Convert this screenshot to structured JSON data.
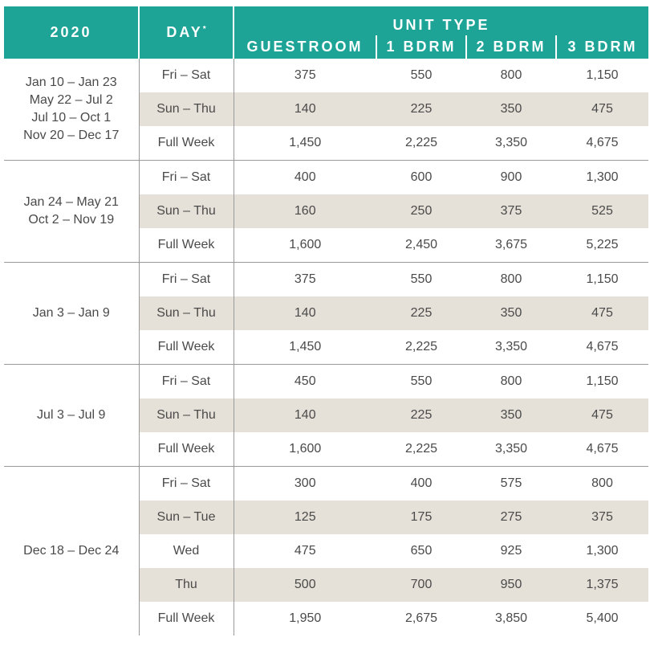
{
  "header": {
    "year": "2020",
    "day": "DAY",
    "day_mark": "*",
    "unit_type": "UNIT TYPE",
    "columns": [
      "GUESTROOM",
      "1 BDRM",
      "2 BDRM",
      "3 BDRM"
    ]
  },
  "colors": {
    "header_bg": "#1ea497",
    "shade": "#e6e1d8"
  },
  "seasons": [
    {
      "dates": [
        "Jan 10 – Jan 23",
        "May 22 – Jul 2",
        "Jul 10 – Oct 1",
        "Nov 20 – Dec 17"
      ],
      "rows": [
        {
          "day": "Fri – Sat",
          "values": [
            "375",
            "550",
            "800",
            "1,150"
          ]
        },
        {
          "day": "Sun – Thu",
          "values": [
            "140",
            "225",
            "350",
            "475"
          ]
        },
        {
          "day": "Full Week",
          "values": [
            "1,450",
            "2,225",
            "3,350",
            "4,675"
          ]
        }
      ]
    },
    {
      "dates": [
        "Jan 24 – May 21",
        "Oct 2 – Nov 19"
      ],
      "rows": [
        {
          "day": "Fri – Sat",
          "values": [
            "400",
            "600",
            "900",
            "1,300"
          ]
        },
        {
          "day": "Sun – Thu",
          "values": [
            "160",
            "250",
            "375",
            "525"
          ]
        },
        {
          "day": "Full Week",
          "values": [
            "1,600",
            "2,450",
            "3,675",
            "5,225"
          ]
        }
      ]
    },
    {
      "dates": [
        "Jan 3 – Jan 9"
      ],
      "rows": [
        {
          "day": "Fri – Sat",
          "values": [
            "375",
            "550",
            "800",
            "1,150"
          ]
        },
        {
          "day": "Sun – Thu",
          "values": [
            "140",
            "225",
            "350",
            "475"
          ]
        },
        {
          "day": "Full Week",
          "values": [
            "1,450",
            "2,225",
            "3,350",
            "4,675"
          ]
        }
      ]
    },
    {
      "dates": [
        "Jul 3 – Jul 9"
      ],
      "rows": [
        {
          "day": "Fri – Sat",
          "values": [
            "450",
            "550",
            "800",
            "1,150"
          ]
        },
        {
          "day": "Sun – Thu",
          "values": [
            "140",
            "225",
            "350",
            "475"
          ]
        },
        {
          "day": "Full Week",
          "values": [
            "1,600",
            "2,225",
            "3,350",
            "4,675"
          ]
        }
      ]
    },
    {
      "dates": [
        "Dec 18 – Dec 24"
      ],
      "rows": [
        {
          "day": "Fri – Sat",
          "values": [
            "300",
            "400",
            "575",
            "800"
          ]
        },
        {
          "day": "Sun – Tue",
          "values": [
            "125",
            "175",
            "275",
            "375"
          ]
        },
        {
          "day": "Wed",
          "values": [
            "475",
            "650",
            "925",
            "1,300"
          ]
        },
        {
          "day": "Thu",
          "values": [
            "500",
            "700",
            "950",
            "1,375"
          ]
        },
        {
          "day": "Full Week",
          "values": [
            "1,950",
            "2,675",
            "3,850",
            "5,400"
          ]
        }
      ]
    }
  ]
}
